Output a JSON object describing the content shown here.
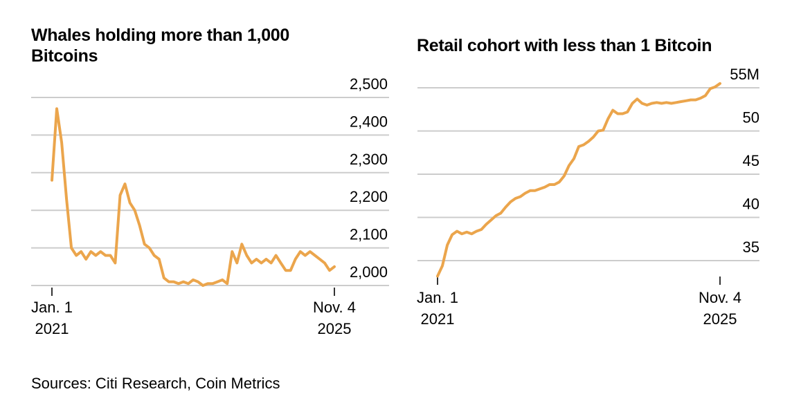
{
  "chart_data": [
    {
      "type": "line",
      "title": "Whales holding more than 1,000 Bitcoins",
      "x": [
        "2021-01",
        "2021-02",
        "2021-03",
        "2021-04",
        "2021-05",
        "2021-06",
        "2021-07",
        "2021-08",
        "2021-09",
        "2021-10",
        "2021-11",
        "2021-12",
        "2022-01",
        "2022-02",
        "2022-03",
        "2022-04",
        "2022-05",
        "2022-06",
        "2022-07",
        "2022-08",
        "2022-09",
        "2022-10",
        "2022-11",
        "2022-12",
        "2023-01",
        "2023-02",
        "2023-03",
        "2023-04",
        "2023-05",
        "2023-06",
        "2023-07",
        "2023-08",
        "2023-09",
        "2023-10",
        "2023-11",
        "2023-12",
        "2024-01",
        "2024-02",
        "2024-03",
        "2024-04",
        "2024-05",
        "2024-06",
        "2024-07",
        "2024-08",
        "2024-09",
        "2024-10",
        "2024-11",
        "2024-12",
        "2025-01",
        "2025-02",
        "2025-03",
        "2025-04",
        "2025-05",
        "2025-06",
        "2025-07",
        "2025-08",
        "2025-09",
        "2025-10",
        "2025-11"
      ],
      "series": [
        {
          "color": "#eba54c",
          "values": [
            2280,
            2470,
            2380,
            2230,
            2100,
            2080,
            2090,
            2070,
            2090,
            2080,
            2090,
            2080,
            2080,
            2060,
            2240,
            2270,
            2220,
            2200,
            2160,
            2110,
            2100,
            2080,
            2070,
            2020,
            2010,
            2010,
            2005,
            2010,
            2005,
            2015,
            2010,
            2000,
            2005,
            2005,
            2010,
            2015,
            2005,
            2090,
            2060,
            2110,
            2080,
            2060,
            2070,
            2060,
            2070,
            2060,
            2080,
            2060,
            2040,
            2040,
            2070,
            2090,
            2080,
            2090,
            2080,
            2070,
            2060,
            2040,
            2050
          ]
        }
      ],
      "xlim": [
        "2021-01",
        "2025-11"
      ],
      "xticks": [
        {
          "value": "2021-01",
          "label": "Jan. 1\n2021"
        },
        {
          "value": "2025-11",
          "label": "Nov. 4\n2025"
        }
      ],
      "ylim": [
        2000,
        2500
      ],
      "yticks": [
        {
          "value": 2000,
          "label": "2,000"
        },
        {
          "value": 2100,
          "label": "2,100"
        },
        {
          "value": 2200,
          "label": "2,200"
        },
        {
          "value": 2300,
          "label": "2,300"
        },
        {
          "value": 2400,
          "label": "2,400"
        },
        {
          "value": 2500,
          "label": "2,500"
        }
      ],
      "grid": true
    },
    {
      "type": "line",
      "title": "Retail cohort with less than 1 Bitcoin",
      "x": [
        "2021-01",
        "2021-02",
        "2021-03",
        "2021-04",
        "2021-05",
        "2021-06",
        "2021-07",
        "2021-08",
        "2021-09",
        "2021-10",
        "2021-11",
        "2021-12",
        "2022-01",
        "2022-02",
        "2022-03",
        "2022-04",
        "2022-05",
        "2022-06",
        "2022-07",
        "2022-08",
        "2022-09",
        "2022-10",
        "2022-11",
        "2022-12",
        "2023-01",
        "2023-02",
        "2023-03",
        "2023-04",
        "2023-05",
        "2023-06",
        "2023-07",
        "2023-08",
        "2023-09",
        "2023-10",
        "2023-11",
        "2023-12",
        "2024-01",
        "2024-02",
        "2024-03",
        "2024-04",
        "2024-05",
        "2024-06",
        "2024-07",
        "2024-08",
        "2024-09",
        "2024-10",
        "2024-11",
        "2024-12",
        "2025-01",
        "2025-02",
        "2025-03",
        "2025-04",
        "2025-05",
        "2025-06",
        "2025-07",
        "2025-08",
        "2025-09",
        "2025-10",
        "2025-11"
      ],
      "series": [
        {
          "color": "#eba54c",
          "values": [
            33.2,
            34.4,
            36.8,
            38.0,
            38.4,
            38.1,
            38.3,
            38.1,
            38.4,
            38.6,
            39.2,
            39.7,
            40.2,
            40.5,
            41.2,
            41.8,
            42.2,
            42.4,
            42.8,
            43.1,
            43.1,
            43.3,
            43.5,
            43.8,
            43.8,
            44.1,
            44.8,
            46.0,
            46.8,
            48.2,
            48.4,
            48.8,
            49.3,
            50.0,
            50.1,
            51.4,
            52.4,
            52.0,
            52.0,
            52.2,
            53.2,
            53.7,
            53.2,
            53.0,
            53.2,
            53.3,
            53.2,
            53.3,
            53.2,
            53.3,
            53.4,
            53.5,
            53.6,
            53.6,
            53.8,
            54.1,
            54.9,
            55.1,
            55.5
          ]
        }
      ],
      "xlim": [
        "2021-01",
        "2025-11"
      ],
      "xticks": [
        {
          "value": "2021-01",
          "label": "Jan. 1\n2021"
        },
        {
          "value": "2025-11",
          "label": "Nov. 4\n2025"
        }
      ],
      "ylim": [
        33,
        55.5
      ],
      "yticks": [
        35,
        40,
        45,
        50,
        {
          "value": 55,
          "label": "55M"
        }
      ],
      "grid": true
    }
  ],
  "source": "Sources: Citi Research, Coin Metrics"
}
